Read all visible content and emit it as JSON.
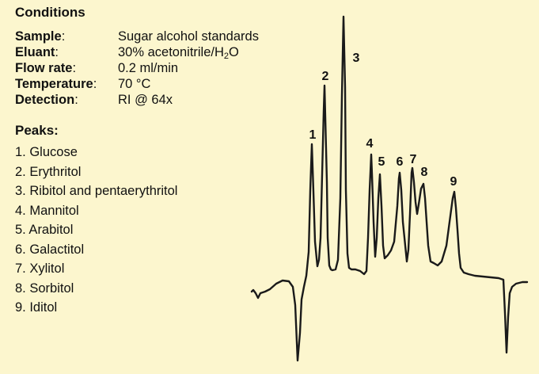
{
  "conditions": {
    "title": "Conditions",
    "rows": [
      {
        "key": "Sample",
        "sep": ":",
        "value": "Sugar alcohol standards"
      },
      {
        "key": "Eluant",
        "sep": ":",
        "value_pre": "30% acetonitrile/H",
        "value_sub": "2",
        "value_post": "O"
      },
      {
        "key": "Flow rate",
        "sep": ":",
        "value": "0.2 ml/min"
      },
      {
        "key": "Temperature",
        "sep": ":",
        "value": "70 °C"
      },
      {
        "key": "Detection",
        "sep": ":",
        "value": "RI @ 64x"
      }
    ]
  },
  "peaks": {
    "title": "Peaks:",
    "items": [
      "1. Glucose",
      "2. Erythritol",
      "3. Ribitol and pentaerythritol",
      "4. Mannitol",
      "5. Arabitol",
      "6. Galactitol",
      "7. Xylitol",
      "8. Sorbitol",
      "9. Iditol"
    ]
  },
  "chart_data": {
    "type": "line",
    "title": "",
    "xlabel": "",
    "ylabel": "",
    "grid": false,
    "trace_color": "#1a1a1a",
    "background_color": "#fcf6ce",
    "peak_labels": [
      "1",
      "2",
      "3",
      "4",
      "5",
      "6",
      "7",
      "8",
      "9"
    ],
    "peak_heights_relative": [
      0.55,
      0.73,
      1.0,
      0.47,
      0.39,
      0.42,
      0.43,
      0.36,
      0.33
    ]
  }
}
